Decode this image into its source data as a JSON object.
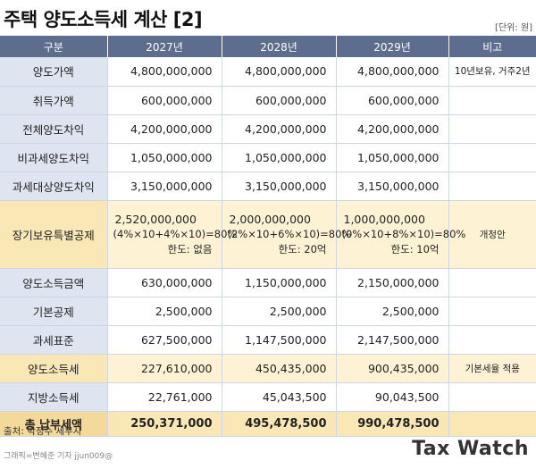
{
  "title": "주택 양도소득세 계산 [2]",
  "unit": "[단위: 원]",
  "headers": [
    "구분",
    "2027년",
    "2028년",
    "2029년",
    "비고"
  ],
  "rows": [
    {
      "label": "양도가액",
      "v": [
        "4,800,000,000",
        "4,800,000,000",
        "4,800,000,000"
      ],
      "note": "10년보유, 거주2년"
    },
    {
      "label": "취득가액",
      "v": [
        "600,000,000",
        "600,000,000",
        "600,000,000"
      ],
      "note": ""
    },
    {
      "label": "전체양도차익",
      "v": [
        "4,200,000,000",
        "4,200,000,000",
        "4,200,000,000"
      ],
      "note": ""
    },
    {
      "label": "비과세양도차익",
      "v": [
        "1,050,000,000",
        "1,050,000,000",
        "1,050,000,000"
      ],
      "note": ""
    },
    {
      "label": "과세대상양도차익",
      "v": [
        "3,150,000,000",
        "3,150,000,000",
        "3,150,000,000"
      ],
      "note": ""
    }
  ],
  "special": {
    "label": "장기보유특별공제",
    "cells": [
      {
        "amount": "2,520,000,000",
        "formula": "(4%×10+4%×10)=80%",
        "limit": "한도: 없음"
      },
      {
        "amount": "2,000,000,000",
        "formula": "(2%×10+6%×10)=80%",
        "limit": "한도: 20억"
      },
      {
        "amount": "1,000,000,000",
        "formula": "(0%×10+8%×10)=80%",
        "limit": "한도: 10억"
      }
    ],
    "note": "개정안"
  },
  "rows2": [
    {
      "label": "양도소득금액",
      "v": [
        "630,000,000",
        "1,150,000,000",
        "2,150,000,000"
      ],
      "note": ""
    },
    {
      "label": "기본공제",
      "v": [
        "2,500,000",
        "2,500,000",
        "2,500,000"
      ],
      "note": ""
    },
    {
      "label": "과세표준",
      "v": [
        "627,500,000",
        "1,147,500,000",
        "2,147,500,000"
      ],
      "note": ""
    }
  ],
  "tax": {
    "label": "양도소득세",
    "v": [
      "227,610,000",
      "450,435,000",
      "900,435,000"
    ],
    "note": "기본세율 적용"
  },
  "local": {
    "label": "지방소득세",
    "v": [
      "22,761,000",
      "45,043,500",
      "90,043,500"
    ],
    "note": ""
  },
  "total": {
    "label": "총 납부세액",
    "v": [
      "250,371,000",
      "495,478,500",
      "990,478,500"
    ],
    "note": ""
  },
  "source": "출처: 박정수 세무사",
  "credit": "그래픽=변혜준 기자 jjun009@",
  "logo": "Tax Watch"
}
